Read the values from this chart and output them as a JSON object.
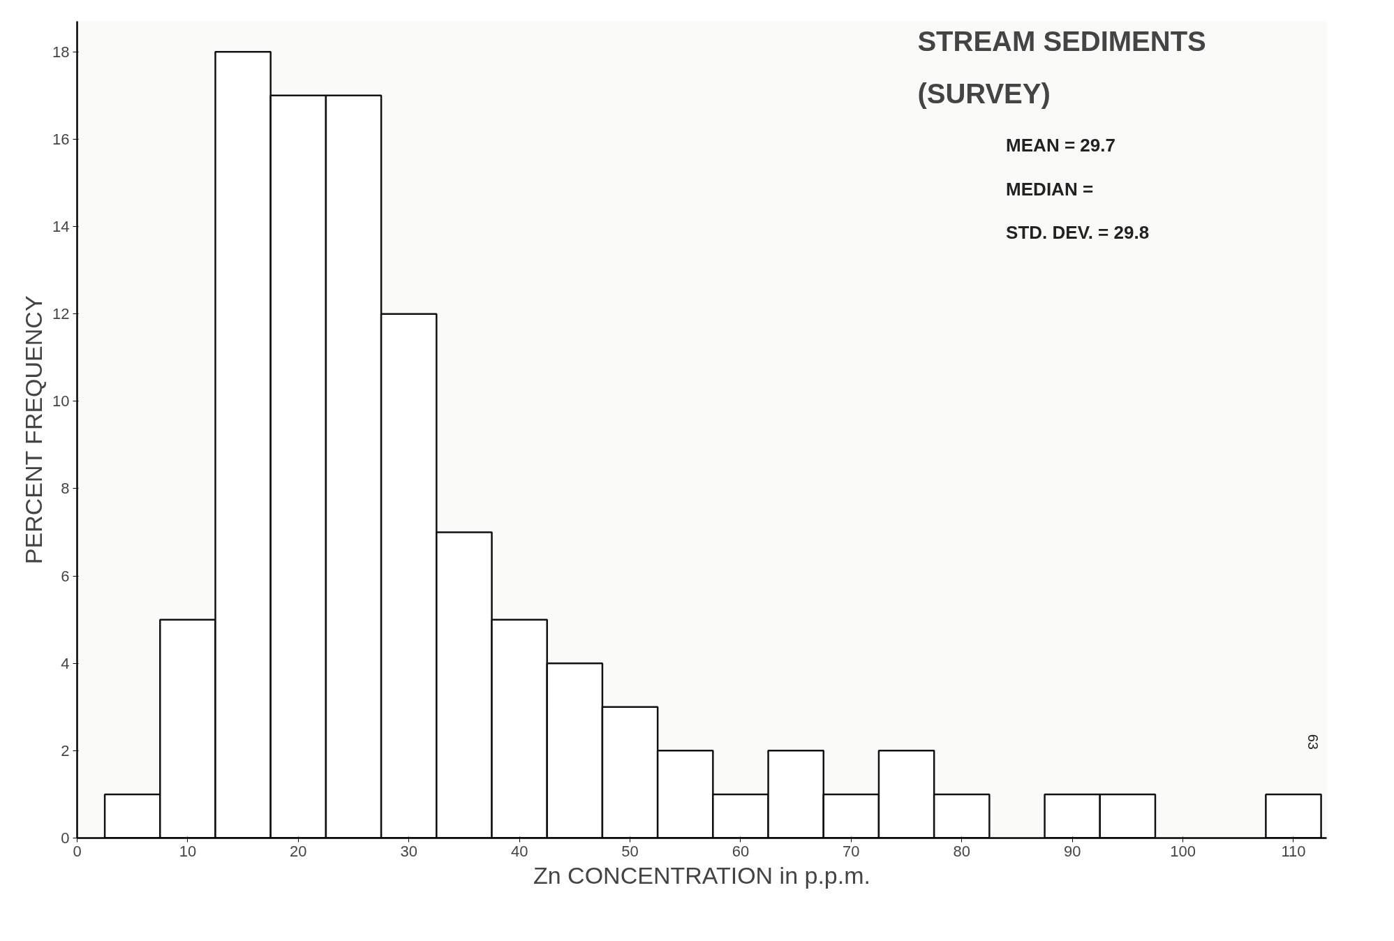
{
  "chart_data": {
    "type": "histogram",
    "title": "STREAM SEDIMENTS",
    "subtitle": "(SURVEY)",
    "xlabel": "Zn CONCENTRATION in p.p.m.",
    "ylabel": "PERCENT FREQUENCY",
    "bins": [
      2.5,
      7.5,
      12.5,
      17.5,
      22.5,
      27.5,
      32.5,
      37.5,
      42.5,
      47.5,
      52.5,
      57.5,
      62.5,
      67.5,
      72.5,
      77.5,
      82.5,
      87.5,
      92.5,
      97.5,
      102.5,
      107.5,
      112.5
    ],
    "values": [
      1,
      5,
      18,
      17,
      17,
      12,
      7,
      5,
      4,
      3,
      2,
      1,
      2,
      1,
      2,
      1,
      0,
      1,
      1,
      0,
      0,
      1
    ],
    "color": "#ffffff",
    "xlim": [
      0,
      113
    ],
    "ylim": [
      0,
      18.7
    ],
    "xticks": [
      0,
      10,
      20,
      30,
      40,
      50,
      60,
      70,
      80,
      90,
      100,
      110
    ],
    "yticks": [
      0,
      2,
      4,
      6,
      8,
      10,
      12,
      14,
      16,
      18
    ],
    "annotations": [
      "MEAN = 29.7",
      "MEDIAN =",
      "STD. DEV. = 29.8",
      "63"
    ],
    "grid": false
  }
}
